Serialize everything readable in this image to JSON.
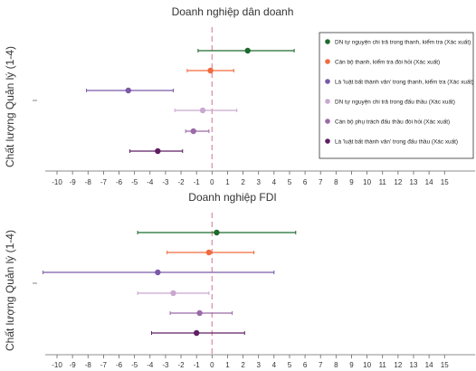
{
  "chart_data": [
    {
      "type": "scatter",
      "subtype": "forest-plot",
      "title": "Doanh nghiệp dân doanh",
      "ylabel": "Chất lượng Quản lý (1-4)",
      "xlabel": "",
      "xlim": [
        -10,
        15
      ],
      "xticks": [
        -10,
        -9,
        -8,
        -7,
        -6,
        -5,
        -4,
        -3,
        -2,
        -1,
        0,
        1,
        2,
        3,
        4,
        5,
        6,
        7,
        8,
        9,
        10,
        11,
        12,
        13,
        14,
        15
      ],
      "reference_line_x": 0,
      "legend_position": "top-right",
      "series": [
        {
          "name": "DN tự nguyện chi trả trong thanh, kiểm tra (Xác xuất)",
          "color": "#1e6b2e",
          "x": 2.3,
          "ci": [
            -0.9,
            5.3
          ]
        },
        {
          "name": "Cán bộ thanh, kiểm tra đòi hỏi (Xác xuất)",
          "color": "#f26a3d",
          "x": -0.1,
          "ci": [
            -1.6,
            1.4
          ]
        },
        {
          "name": "Là 'luật bất thành văn' trong thanh, kiểm tra (Xác xuất)",
          "color": "#7a5aa6",
          "x": -5.4,
          "ci": [
            -8.1,
            -2.5
          ]
        },
        {
          "name": "DN tự nguyện chi trả trong đấu thầu (Xác xuất)",
          "color": "#c9a8d0",
          "x": -0.6,
          "ci": [
            -2.4,
            1.6
          ]
        },
        {
          "name": "Cán bộ phụ trách đấu thầu đòi hỏi (Xác xuất)",
          "color": "#9a6aa8",
          "x": -1.2,
          "ci": [
            -1.7,
            -0.2
          ]
        },
        {
          "name": "Là 'luật bất thành văn' trong đấu thầu (Xác xuất)",
          "color": "#5e1f63",
          "x": -3.5,
          "ci": [
            -5.3,
            -1.9
          ]
        }
      ]
    },
    {
      "type": "scatter",
      "subtype": "forest-plot",
      "title": "Doanh nghiệp FDI",
      "ylabel": "Chất lượng Quản lý (1-4)",
      "xlabel": "",
      "xlim": [
        -10,
        15
      ],
      "xticks": [
        -10,
        -9,
        -8,
        -7,
        -6,
        -5,
        -4,
        -3,
        -2,
        -1,
        0,
        1,
        2,
        3,
        4,
        5,
        6,
        7,
        8,
        9,
        10,
        11,
        12,
        13,
        14,
        15
      ],
      "reference_line_x": 0,
      "series": [
        {
          "name": "DN tự nguyện chi trả trong thanh, kiểm tra (Xác xuất)",
          "color": "#1e6b2e",
          "x": 0.3,
          "ci": [
            -4.8,
            5.4
          ]
        },
        {
          "name": "Cán bộ thanh, kiểm tra đòi hỏi (Xác xuất)",
          "color": "#f26a3d",
          "x": -0.2,
          "ci": [
            -2.9,
            2.7
          ]
        },
        {
          "name": "Là 'luật bất thành văn' trong thanh, kiểm tra (Xác xuất)",
          "color": "#7a5aa6",
          "x": -3.5,
          "ci": [
            -10.9,
            4.0
          ]
        },
        {
          "name": "DN tự nguyện chi trả trong đấu thầu (Xác xuất)",
          "color": "#c9a8d0",
          "x": -2.5,
          "ci": [
            -4.8,
            -0.2
          ]
        },
        {
          "name": "Cán bộ phụ trách đấu thầu đòi hỏi (Xác xuất)",
          "color": "#9a6aa8",
          "x": -0.8,
          "ci": [
            -2.7,
            1.3
          ]
        },
        {
          "name": "Là 'luật bất thành văn' trong đấu thầu (Xác xuất)",
          "color": "#5e1f63",
          "x": -1.0,
          "ci": [
            -3.9,
            2.1
          ]
        }
      ]
    }
  ]
}
